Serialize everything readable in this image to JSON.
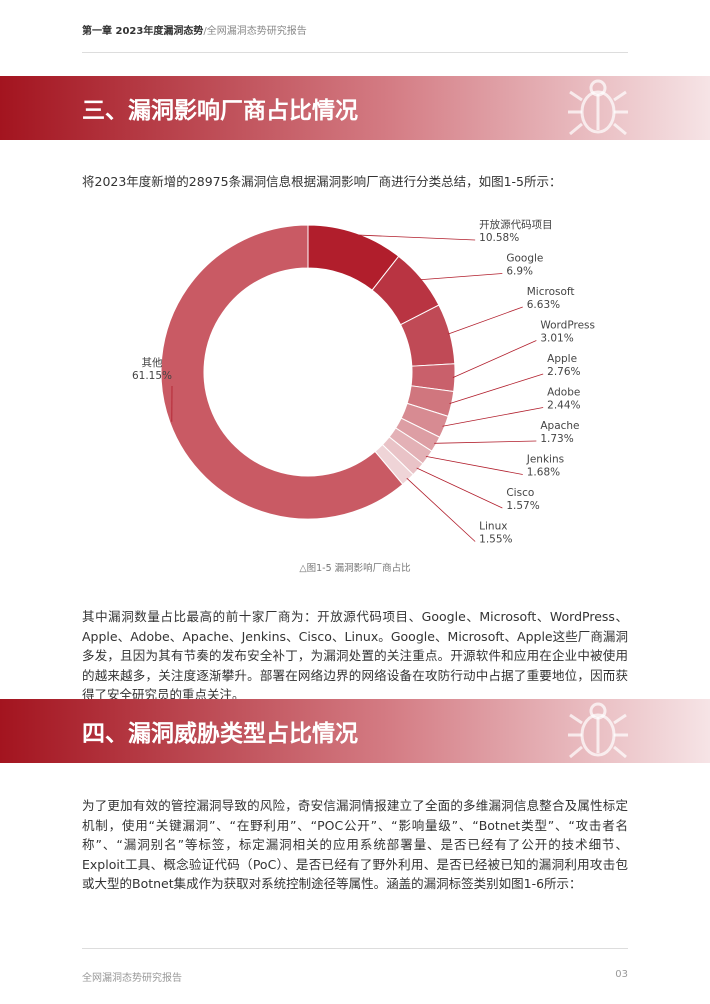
{
  "header": {
    "chapter": "第一章 2023年度漏洞态势",
    "report": "/全网漏洞态势研究报告"
  },
  "section_1": {
    "title": "三、漏洞影响厂商占比情况",
    "intro": "将2023年度新增的28975条漏洞信息根据漏洞影响厂商进行分类总结，如图1-5所示：",
    "caption": "△图1-5 漏洞影响厂商占比",
    "summary": "其中漏洞数量占比最高的前十家厂商为：开放源代码项目、Google、Microsoft、WordPress、Apple、Adobe、Apache、Jenkins、Cisco、Linux。Google、Microsoft、Apple这些厂商漏洞多发，且因为其有节奏的发布安全补丁，为漏洞处置的关注重点。开源软件和应用在企业中被使用的越来越多，关注度逐渐攀升。部署在网络边界的网络设备在攻防行动中占据了重要地位，因而获得了安全研究员的重点关注。"
  },
  "chart_data": {
    "type": "donut",
    "categories": [
      "开放源代码项目",
      "Google",
      "Microsoft",
      "WordPress",
      "Apple",
      "Adobe",
      "Apache",
      "Jenkins",
      "Cisco",
      "Linux",
      "其他"
    ],
    "values": [
      10.58,
      6.9,
      6.63,
      3.01,
      2.76,
      2.44,
      1.73,
      1.68,
      1.57,
      1.55,
      61.15
    ],
    "value_labels": [
      "10.58%",
      "6.9%",
      "6.63%",
      "3.01%",
      "2.76%",
      "2.44%",
      "1.73%",
      "1.68%",
      "1.57%",
      "1.55%",
      "61.15%"
    ],
    "colors": [
      "#b11e2c",
      "#b93442",
      "#c04a56",
      "#c9606b",
      "#d0767e",
      "#d78b92",
      "#dd9ea4",
      "#e3b1b6",
      "#e9c3c7",
      "#efd4d7",
      "#c95a64"
    ]
  },
  "section_2": {
    "title": "四、漏洞威胁类型占比情况",
    "body": "为了更加有效的管控漏洞导致的风险，奇安信漏洞情报建立了全面的多维漏洞信息整合及属性标定机制，使用“关键漏洞”、“在野利用”、“POC公开”、“影响量级”、“Botnet类型”、“攻击者名称”、“漏洞别名”等标签，标定漏洞相关的应用系统部署量、是否已经有了公开的技术细节、Exploit工具、概念验证代码（PoC）、是否已经有了野外利用、是否已经被已知的漏洞利用攻击包或大型的Botnet集成作为获取对系统控制途径等属性。涵盖的漏洞标签类别如图1-6所示："
  },
  "footer": {
    "text": "全网漏洞态势研究报告",
    "page": "03"
  }
}
